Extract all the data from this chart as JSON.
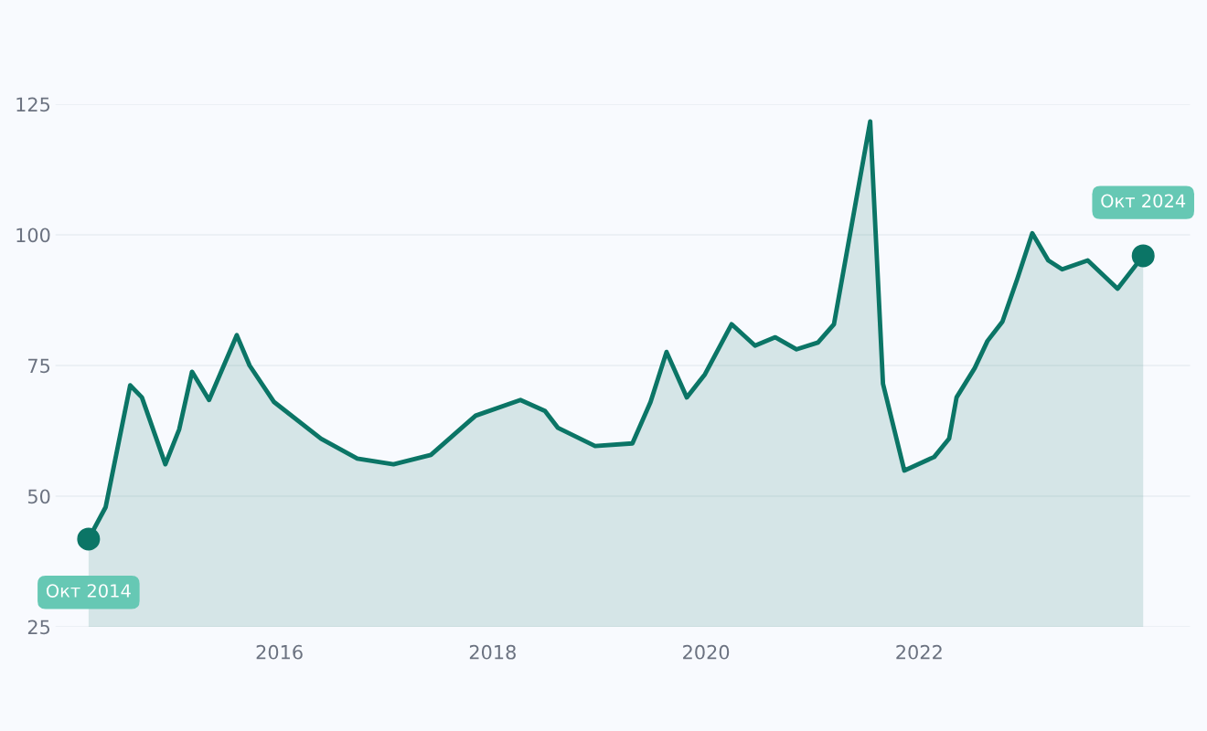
{
  "chart_data": {
    "type": "area",
    "x": [
      2014.21,
      2014.37,
      2014.6,
      2014.71,
      2014.93,
      2015.06,
      2015.18,
      2015.34,
      2015.6,
      2015.72,
      2015.95,
      2016.39,
      2016.73,
      2017.07,
      2017.42,
      2017.84,
      2018.26,
      2018.49,
      2018.61,
      2018.96,
      2019.31,
      2019.48,
      2019.63,
      2019.82,
      2019.99,
      2020.24,
      2020.46,
      2020.65,
      2020.85,
      2021.05,
      2021.2,
      2021.54,
      2021.66,
      2021.86,
      2022.14,
      2022.28,
      2022.35,
      2022.52,
      2022.64,
      2022.78,
      2022.92,
      2023.06,
      2023.21,
      2023.34,
      2023.58,
      2023.86,
      2024.1
    ],
    "series": [
      {
        "color": "#0b7566",
        "values": [
          41.8,
          47.9,
          71.2,
          68.9,
          56.1,
          62.8,
          73.8,
          68.4,
          80.8,
          75.0,
          68.0,
          61.0,
          57.2,
          56.1,
          57.9,
          65.4,
          68.4,
          66.3,
          63.1,
          59.6,
          60.1,
          68.0,
          77.6,
          68.9,
          73.3,
          82.9,
          78.8,
          80.4,
          78.1,
          79.4,
          82.9,
          121.7,
          71.5,
          54.9,
          57.5,
          61.0,
          68.9,
          74.5,
          79.7,
          83.4,
          91.6,
          100.3,
          95.1,
          93.4,
          95.1,
          89.7,
          96.0
        ]
      }
    ],
    "xlim": [
      2013.9,
      2024.54
    ],
    "xticks": [
      2016,
      2018,
      2020,
      2022
    ],
    "ylim": [
      25,
      125
    ],
    "yticks": [
      25,
      50,
      75,
      100,
      125
    ],
    "grid": "y",
    "annotations": [
      {
        "text": "Окт 2014",
        "x": 2014.21,
        "y": 41.8
      },
      {
        "text": "Окт 2024",
        "x": 2024.1,
        "y": 96.0
      }
    ]
  }
}
